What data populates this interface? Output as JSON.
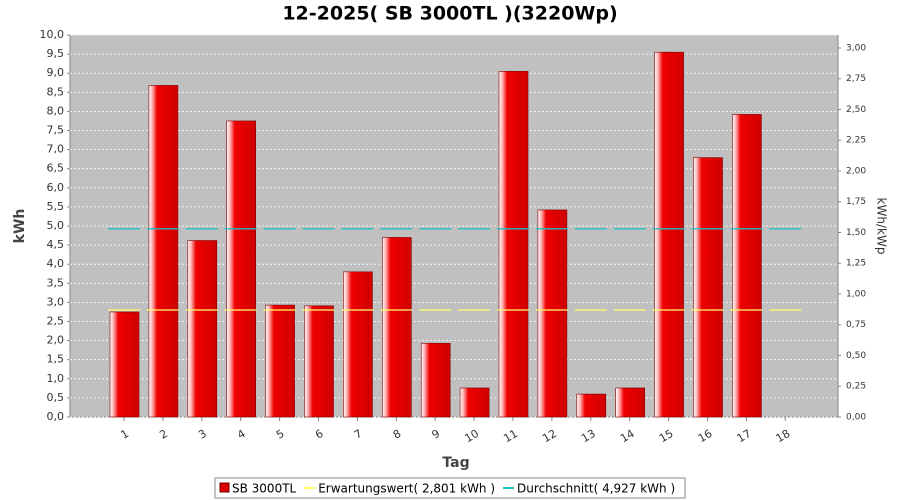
{
  "chart_data": {
    "type": "bar",
    "title": "12-2025( SB 3000TL )(3220Wp)",
    "x_label": "Tag",
    "y_label": "kWh",
    "y2_label": "kWh/kWp",
    "categories": [
      "1",
      "2",
      "3",
      "4",
      "5",
      "6",
      "7",
      "8",
      "9",
      "10",
      "11",
      "12",
      "13",
      "14",
      "15",
      "16",
      "17",
      "18"
    ],
    "series": [
      {
        "name": "SB 3000TL",
        "color": "#e00000",
        "kind": "bar",
        "values": [
          2.75,
          8.68,
          4.62,
          7.75,
          2.93,
          2.91,
          3.8,
          4.7,
          1.93,
          0.76,
          9.05,
          5.42,
          0.6,
          0.76,
          9.55,
          6.79,
          7.92,
          null
        ]
      },
      {
        "name": "Erwartungswert( 2,801 kWh )",
        "color": "#ffff66",
        "kind": "level",
        "values": [
          2.801,
          2.801,
          2.801,
          2.801,
          2.801,
          2.801,
          2.801,
          2.801,
          2.801,
          2.801,
          2.801,
          2.801,
          2.801,
          2.801,
          2.801,
          2.801,
          2.801,
          2.801
        ]
      },
      {
        "name": "Durchschnitt( 4,927 kWh )",
        "color": "#20c0c0",
        "kind": "level",
        "values": [
          4.927,
          4.927,
          4.927,
          4.927,
          4.927,
          4.927,
          4.927,
          4.927,
          4.927,
          4.927,
          4.927,
          4.927,
          4.927,
          4.927,
          4.927,
          4.927,
          4.927,
          4.927
        ]
      }
    ],
    "ylim": [
      0,
      10
    ],
    "yticks": [
      {
        "value": 0,
        "label": "0,0"
      },
      {
        "value": 0.5,
        "label": "0,5"
      },
      {
        "value": 1,
        "label": "1,0"
      },
      {
        "value": 1.5,
        "label": "1,5"
      },
      {
        "value": 2,
        "label": "2,0"
      },
      {
        "value": 2.5,
        "label": "2,5"
      },
      {
        "value": 3,
        "label": "3,0"
      },
      {
        "value": 3.5,
        "label": "3,5"
      },
      {
        "value": 4,
        "label": "4,0"
      },
      {
        "value": 4.5,
        "label": "4,5"
      },
      {
        "value": 5,
        "label": "5,0"
      },
      {
        "value": 5.5,
        "label": "5,5"
      },
      {
        "value": 6,
        "label": "6,0"
      },
      {
        "value": 6.5,
        "label": "6,5"
      },
      {
        "value": 7,
        "label": "7,0"
      },
      {
        "value": 7.5,
        "label": "7,5"
      },
      {
        "value": 8,
        "label": "8,0"
      },
      {
        "value": 8.5,
        "label": "8,5"
      },
      {
        "value": 9,
        "label": "9,0"
      },
      {
        "value": 9.5,
        "label": "9,5"
      },
      {
        "value": 10,
        "label": "10,0"
      }
    ],
    "y2lim": [
      0,
      3.1056
    ],
    "y2ticks": [
      {
        "value": 0,
        "label": "0,00"
      },
      {
        "value": 0.25,
        "label": "0,25"
      },
      {
        "value": 0.5,
        "label": "0,50"
      },
      {
        "value": 0.75,
        "label": "0,75"
      },
      {
        "value": 1,
        "label": "1,00"
      },
      {
        "value": 1.25,
        "label": "1,25"
      },
      {
        "value": 1.5,
        "label": "1,50"
      },
      {
        "value": 1.75,
        "label": "1,75"
      },
      {
        "value": 2,
        "label": "2,00"
      },
      {
        "value": 2.25,
        "label": "2,25"
      },
      {
        "value": 2.5,
        "label": "2,50"
      },
      {
        "value": 2.75,
        "label": "2,75"
      },
      {
        "value": 3,
        "label": "3,00"
      }
    ],
    "grid": true,
    "legend": "bottom"
  }
}
